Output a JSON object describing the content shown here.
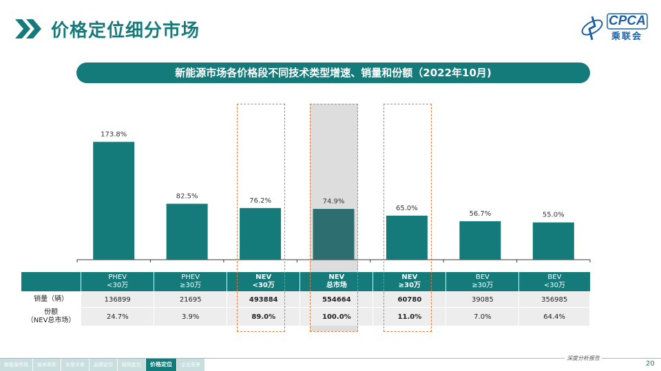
{
  "page": {
    "title": "价格定位细分市场",
    "logo_text": "CPCA",
    "logo_cn": "乘联会",
    "subtitle": "新能源市场各价格段不同技术类型增速、销量和份额（2022年10月)",
    "footer_tag": "深度分析报告",
    "page_number": "20"
  },
  "nav": {
    "items": [
      "新能源市场",
      "技术类型",
      "车型大类",
      "品牌定位",
      "级别定位",
      "价格定位",
      "企业竞争"
    ],
    "active_index": 5
  },
  "table": {
    "row_labels": [
      "销量（辆）",
      "份额\n（NEV总市场）"
    ],
    "columns": [
      {
        "line1": "PHEV",
        "line2": "<30万",
        "sales": "136899",
        "share": "24.7%"
      },
      {
        "line1": "PHEV",
        "line2": "≥30万",
        "sales": "21695",
        "share": "3.9%"
      },
      {
        "line1": "NEV",
        "line2": "<30万",
        "sales": "493884",
        "share": "89.0%"
      },
      {
        "line1": "NEV",
        "line2": "总市场",
        "sales": "554664",
        "share": "100.0%"
      },
      {
        "line1": "NEV",
        "line2": "≥30万",
        "sales": "60780",
        "share": "11.0%"
      },
      {
        "line1": "BEV",
        "line2": "≥30万",
        "sales": "39085",
        "share": "7.0%"
      },
      {
        "line1": "BEV",
        "line2": "<30万",
        "sales": "356985",
        "share": "64.4%"
      }
    ]
  },
  "chart_data": {
    "type": "bar",
    "title": "新能源市场各价格段不同技术类型增速、销量和份额（2022年10月)",
    "categories": [
      "PHEV <30万",
      "PHEV ≥30万",
      "NEV <30万",
      "NEV 总市场",
      "NEV ≥30万",
      "BEV ≥30万",
      "BEV <30万"
    ],
    "values": [
      173.8,
      82.5,
      76.2,
      74.9,
      65.0,
      56.7,
      55.0
    ],
    "value_labels": [
      "173.8%",
      "82.5%",
      "76.2%",
      "74.9%",
      "65.0%",
      "56.7%",
      "55.0%"
    ],
    "ylim": [
      0,
      230
    ],
    "bar_color": "#147a7a",
    "highlighted_categories": [
      "NEV <30万",
      "NEV 总市场",
      "NEV ≥30万"
    ],
    "shaded_category": "NEV 总市场",
    "grid": false
  }
}
